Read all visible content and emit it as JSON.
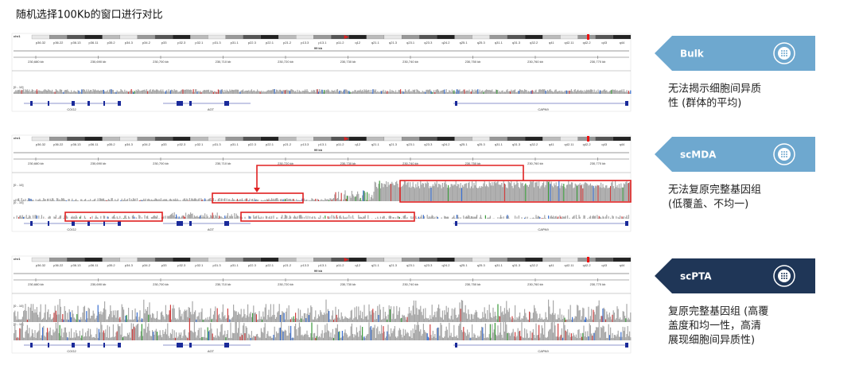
{
  "title": "随机选择100Kb的窗口进行对比",
  "panels": [
    {
      "chromosome": "chr1",
      "bands": [
        "p36.32",
        "p36.22",
        "p36.13",
        "p36.11",
        "p35.2",
        "p34.3",
        "p34.2",
        "p33",
        "p32.3",
        "p32.1",
        "p31.3",
        "p31.1",
        "p22.3",
        "p22.1",
        "p21.2",
        "p13.3",
        "p13.1",
        "p11.2",
        "q12",
        "q21.1",
        "q21.3",
        "q23.1",
        "q23.3",
        "q24.2",
        "q25.1",
        "q25.3",
        "q31.1",
        "q31.3",
        "q32.2",
        "q41",
        "q42.11",
        "q42.2",
        "q43",
        "q44"
      ],
      "span": "99 kb",
      "positions": [
        "230,680 kb",
        "230,690 kb",
        "230,700 kb",
        "230,710 kb",
        "230,720 kb",
        "230,730 kb",
        "230,740 kb",
        "230,750 kb",
        "230,760 kb",
        "230,770 kb"
      ],
      "tracks": [
        "[0 - 10]"
      ],
      "genes": [
        "COG2",
        "AGT",
        "CAPN9"
      ]
    },
    {
      "chromosome": "chr1",
      "bands": [
        "p36.32",
        "p36.22",
        "p36.13",
        "p36.11",
        "p35.2",
        "p34.3",
        "p34.2",
        "p33",
        "p32.3",
        "p32.1",
        "p31.3",
        "p31.1",
        "p22.3",
        "p22.1",
        "p21.2",
        "p13.3",
        "p13.1",
        "p11.2",
        "q12",
        "q21.1",
        "q21.3",
        "q23.1",
        "q23.3",
        "q24.2",
        "q25.1",
        "q25.3",
        "q31.1",
        "q31.3",
        "q32.2",
        "q41",
        "q42.11",
        "q42.2",
        "q43",
        "q44"
      ],
      "span": "99 kb",
      "positions": [
        "230,680 kb",
        "230,690 kb",
        "230,700 kb",
        "230,710 kb",
        "230,720 kb",
        "230,730 kb",
        "230,740 kb",
        "230,750 kb",
        "230,760 kb",
        "230,770 kb"
      ],
      "tracks": [
        "[0 - 10]",
        "[0 - 10]"
      ],
      "genes": [
        "COG2",
        "AGT",
        "CAPN9"
      ]
    },
    {
      "chromosome": "chr1",
      "bands": [
        "p36.32",
        "p36.22",
        "p36.13",
        "p36.11",
        "p35.2",
        "p34.3",
        "p34.2",
        "p33",
        "p32.3",
        "p32.1",
        "p31.3",
        "p31.1",
        "p22.3",
        "p22.1",
        "p21.2",
        "p13.3",
        "p13.1",
        "p11.2",
        "q12",
        "q21.1",
        "q21.3",
        "q23.1",
        "q23.3",
        "q24.2",
        "q25.1",
        "q25.3",
        "q31.1",
        "q31.3",
        "q32.2",
        "q41",
        "q42.11",
        "q42.2",
        "q43",
        "q44"
      ],
      "span": "99 kb",
      "positions": [
        "230,680 kb",
        "230,690 kb",
        "230,700 kb",
        "230,710 kb",
        "230,720 kb",
        "230,730 kb",
        "230,740 kb",
        "230,750 kb",
        "230,760 kb",
        "230,770 kb"
      ],
      "tracks": [
        "[0 - 10]",
        "[0 - 10]"
      ],
      "genes": [
        "COG2",
        "AGT",
        "CAPN9"
      ]
    }
  ],
  "labels": [
    {
      "name": "Bulk",
      "description": [
        "无法揭示细胞间异质",
        "性 (群体的平均)"
      ]
    },
    {
      "name": "scMDA",
      "description": [
        "无法复原完整基因组",
        "(低覆盖、不均一)"
      ]
    },
    {
      "name": "scPTA",
      "description": [
        "复原完整基因组 (高覆",
        "盖度和均一性，高清",
        "展现细胞间异质性)"
      ]
    }
  ]
}
